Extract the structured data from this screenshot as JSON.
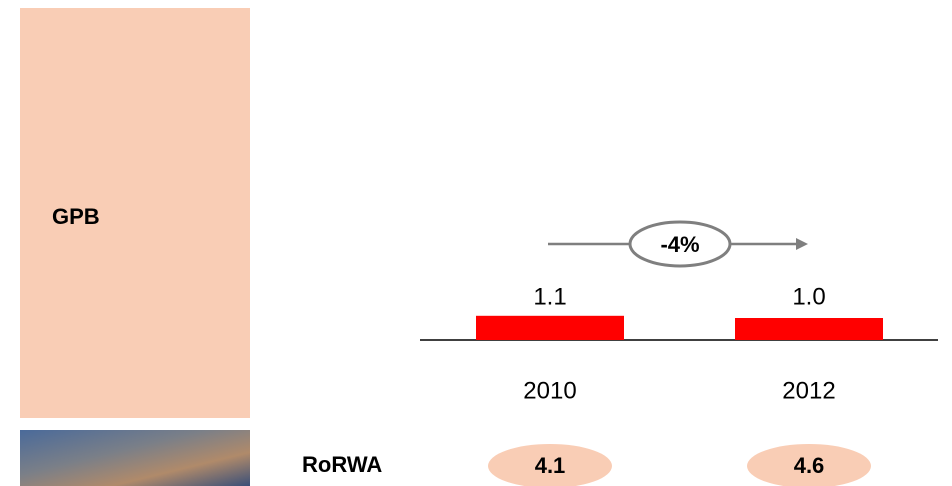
{
  "chart_data": {
    "type": "bar",
    "side_label": "GPB",
    "categories": [
      "2010",
      "2012"
    ],
    "values": [
      1.1,
      1.0
    ],
    "value_labels": [
      "1.1",
      "1.0"
    ],
    "color": "#ff0000",
    "annotation": "-4%",
    "metric": {
      "label": "RoRWA",
      "values": [
        4.1,
        4.6
      ]
    }
  }
}
